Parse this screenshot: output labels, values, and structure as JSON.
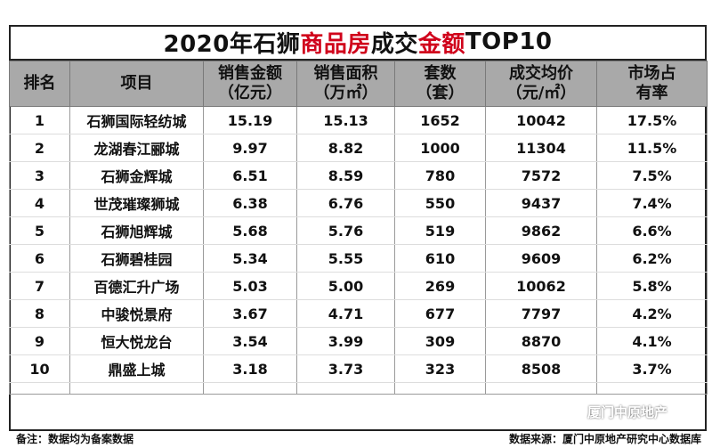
{
  "title": {
    "part1": "2020年石狮",
    "part2": "商品房",
    "part3": "成交",
    "part4": "金额",
    "part5": "TOP10"
  },
  "headers": [
    {
      "l1": "排名",
      "l2": ""
    },
    {
      "l1": "项目",
      "l2": ""
    },
    {
      "l1": "销售金额",
      "l2": "（亿元）"
    },
    {
      "l1": "销售面积",
      "l2": "（万㎡）"
    },
    {
      "l1": "套数",
      "l2": "（套）"
    },
    {
      "l1": "成交均价",
      "l2": "（元/㎡）"
    },
    {
      "l1": "市场占",
      "l2": "有率"
    }
  ],
  "rows": [
    {
      "rank": "1",
      "project": "石狮国际轻纺城",
      "amount": "15.19",
      "area": "15.13",
      "units": "1652",
      "price": "10042",
      "share": "17.5%"
    },
    {
      "rank": "2",
      "project": "龙湖春江郦城",
      "amount": "9.97",
      "area": "8.82",
      "units": "1000",
      "price": "11304",
      "share": "11.5%"
    },
    {
      "rank": "3",
      "project": "石狮金辉城",
      "amount": "6.51",
      "area": "8.59",
      "units": "780",
      "price": "7572",
      "share": "7.5%"
    },
    {
      "rank": "4",
      "project": "世茂璀璨狮城",
      "amount": "6.38",
      "area": "6.76",
      "units": "550",
      "price": "9437",
      "share": "7.4%"
    },
    {
      "rank": "5",
      "project": "石狮旭辉城",
      "amount": "5.68",
      "area": "5.76",
      "units": "519",
      "price": "9862",
      "share": "6.6%"
    },
    {
      "rank": "6",
      "project": "石狮碧桂园",
      "amount": "5.34",
      "area": "5.55",
      "units": "610",
      "price": "9609",
      "share": "6.2%"
    },
    {
      "rank": "7",
      "project": "百德汇升广场",
      "amount": "5.03",
      "area": "5.00",
      "units": "269",
      "price": "10062",
      "share": "5.8%"
    },
    {
      "rank": "8",
      "project": "中骏悦景府",
      "amount": "3.67",
      "area": "4.71",
      "units": "677",
      "price": "7797",
      "share": "4.2%"
    },
    {
      "rank": "9",
      "project": "恒大悦龙台",
      "amount": "3.54",
      "area": "3.99",
      "units": "309",
      "price": "8870",
      "share": "4.1%"
    },
    {
      "rank": "10",
      "project": "鼎盛上城",
      "amount": "3.18",
      "area": "3.73",
      "units": "323",
      "price": "8508",
      "share": "3.7%"
    }
  ],
  "footer": {
    "note": "备注：数据均为备案数据",
    "source": "数据来源：厦门中原地产研究中心数据库"
  },
  "watermark": "厦门中原地产",
  "colors": {
    "highlight": "#d0021b",
    "header_bg": "#a9a9a9"
  }
}
